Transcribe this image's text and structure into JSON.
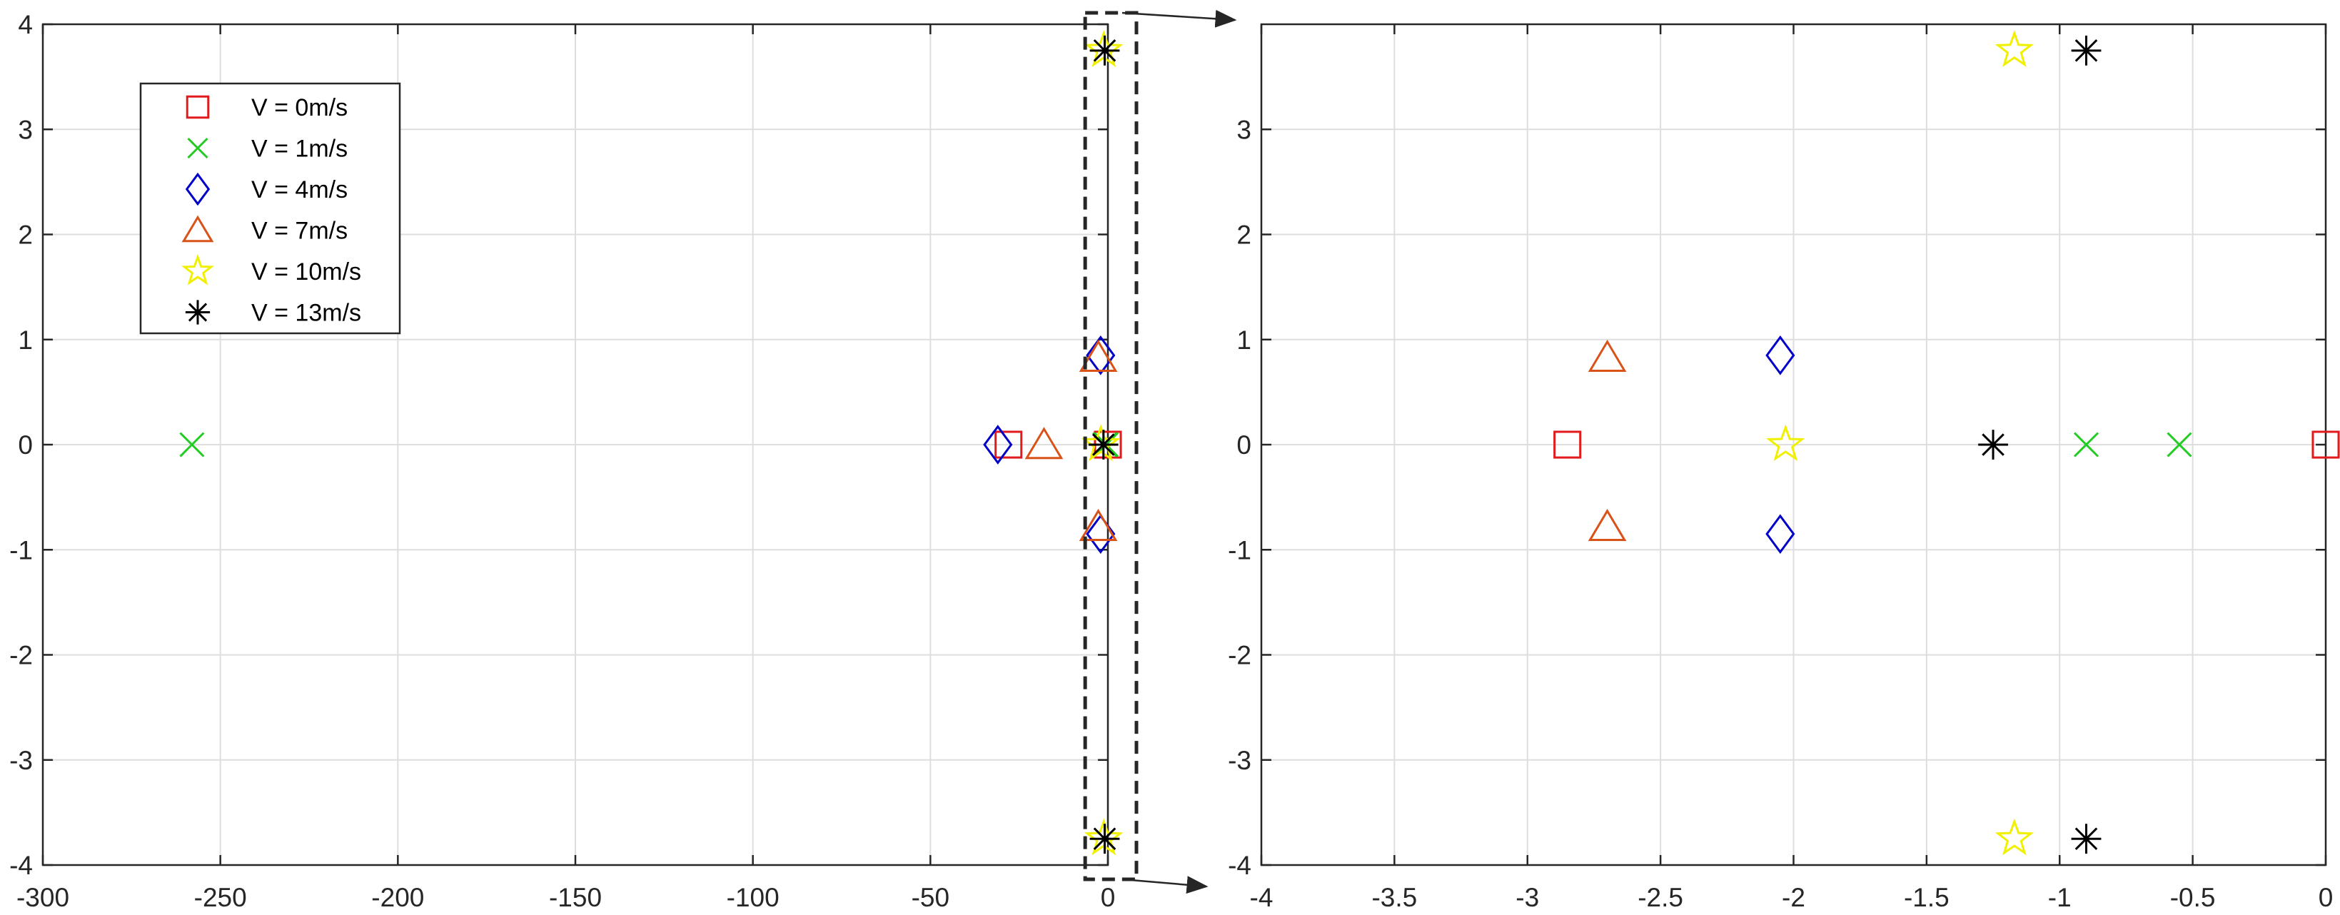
{
  "chart_data": [
    {
      "type": "scatter",
      "xlim": [
        -300,
        0
      ],
      "ylim": [
        -4,
        4
      ],
      "xticks": [
        "-300",
        "-250",
        "-200",
        "-150",
        "-100",
        "-50",
        "0"
      ],
      "yticks": [
        "-4",
        "-3",
        "-2",
        "-1",
        "0",
        "1",
        "2",
        "3",
        "4"
      ],
      "grid": true,
      "legend_position": "top-left",
      "series": [
        {
          "name": "V = 0m/s",
          "marker": "square",
          "color": "#e31a1c",
          "points": [
            [
              -28,
              0
            ],
            [
              0,
              0
            ]
          ]
        },
        {
          "name": "V = 1m/s",
          "marker": "x",
          "color": "#22cc22",
          "points": [
            [
              -258,
              0
            ],
            [
              -0.5,
              0
            ],
            [
              -0.9,
              0
            ]
          ]
        },
        {
          "name": "V = 4m/s",
          "marker": "diamond",
          "color": "#0000c8",
          "points": [
            [
              -31,
              0
            ],
            [
              -2.05,
              0.85
            ],
            [
              -2.05,
              -0.85
            ]
          ]
        },
        {
          "name": "V = 7m/s",
          "marker": "triangle",
          "color": "#d95319",
          "points": [
            [
              -18,
              0
            ],
            [
              -2.7,
              0.83
            ],
            [
              -2.7,
              -0.78
            ]
          ]
        },
        {
          "name": "V = 10m/s",
          "marker": "star",
          "color": "#f0f000",
          "points": [
            [
              -2.0,
              0
            ],
            [
              -1.15,
              3.75
            ],
            [
              -1.15,
              -3.75
            ]
          ]
        },
        {
          "name": "V = 13m/s",
          "marker": "asterisk",
          "color": "#000000",
          "points": [
            [
              -1.25,
              0
            ],
            [
              -0.9,
              3.75
            ],
            [
              -0.9,
              -3.75
            ]
          ]
        }
      ]
    },
    {
      "type": "scatter",
      "xlim": [
        -4,
        0
      ],
      "ylim": [
        -4,
        4
      ],
      "xticks": [
        "-4",
        "-3.5",
        "-3",
        "-2.5",
        "-2",
        "-1.5",
        "-1",
        "-0.5",
        "0"
      ],
      "yticks": [
        "-4",
        "-3",
        "-2",
        "-1",
        "0",
        "1",
        "2",
        "3"
      ],
      "grid": true,
      "series": [
        {
          "name": "V = 0m/s",
          "marker": "square",
          "color": "#e31a1c",
          "points": [
            [
              -2.85,
              0
            ],
            [
              0,
              0
            ]
          ]
        },
        {
          "name": "V = 1m/s",
          "marker": "x",
          "color": "#22cc22",
          "points": [
            [
              -0.9,
              0
            ],
            [
              -0.55,
              0
            ]
          ]
        },
        {
          "name": "V = 4m/s",
          "marker": "diamond",
          "color": "#0000c8",
          "points": [
            [
              -2.05,
              0.85
            ],
            [
              -2.05,
              -0.85
            ]
          ]
        },
        {
          "name": "V = 7m/s",
          "marker": "triangle",
          "color": "#d95319",
          "points": [
            [
              -2.7,
              0.83
            ],
            [
              -2.7,
              -0.78
            ]
          ]
        },
        {
          "name": "V = 10m/s",
          "marker": "star",
          "color": "#f0f000",
          "points": [
            [
              -2.03,
              0
            ],
            [
              -1.17,
              3.75
            ],
            [
              -1.17,
              -3.75
            ]
          ]
        },
        {
          "name": "V = 13m/s",
          "marker": "asterisk",
          "color": "#000000",
          "points": [
            [
              -1.25,
              0
            ],
            [
              -0.9,
              3.75
            ],
            [
              -0.9,
              -3.75
            ]
          ]
        }
      ]
    }
  ]
}
